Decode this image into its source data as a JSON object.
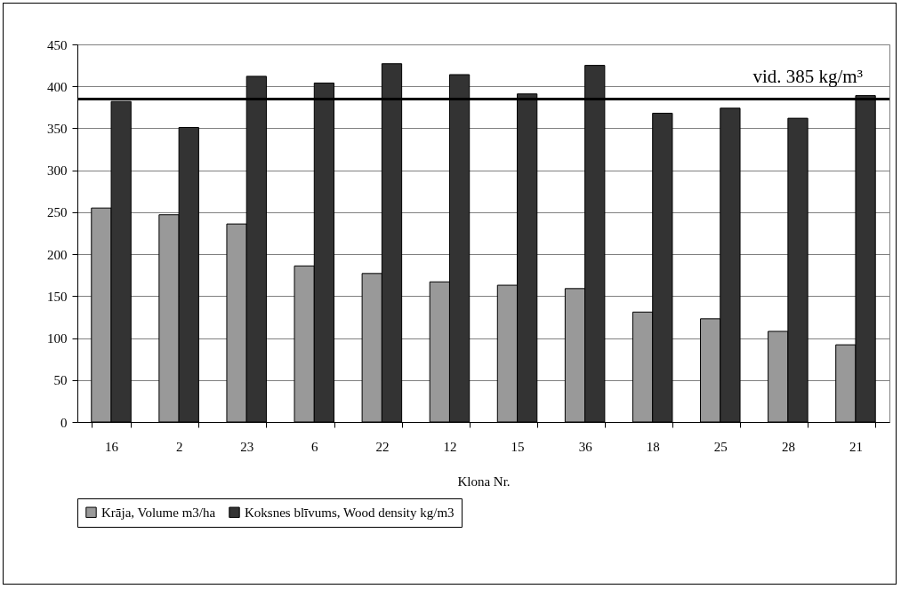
{
  "chart_data": {
    "type": "bar",
    "xlabel": "Klona Nr.",
    "categories": [
      "16",
      "2",
      "23",
      "6",
      "22",
      "12",
      "15",
      "36",
      "18",
      "25",
      "28",
      "21"
    ],
    "series": [
      {
        "name": "Krāja, Volume m3/ha",
        "color": "#999999",
        "values": [
          255,
          247,
          236,
          186,
          177,
          167,
          163,
          159,
          131,
          123,
          108,
          92
        ]
      },
      {
        "name": "Koksnes blīvums, Wood density kg/m3",
        "color": "#333333",
        "values": [
          382,
          351,
          412,
          404,
          427,
          414,
          391,
          425,
          368,
          374,
          362,
          389
        ]
      }
    ],
    "ylim": [
      0,
      450
    ],
    "yticks": [
      0,
      50,
      100,
      150,
      200,
      250,
      300,
      350,
      400,
      450
    ],
    "ref_lines": [
      {
        "axis": "y",
        "value": 385,
        "label": "vid. 385 kg/m³",
        "color": "#000000"
      }
    ],
    "grid": "y",
    "legend": "bottom"
  }
}
